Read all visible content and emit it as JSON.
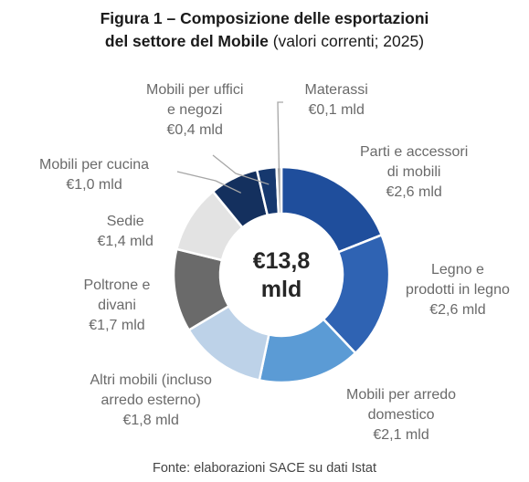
{
  "chart_data": {
    "type": "pie",
    "title_bold": "Figura 1 – Composizione delle esportazioni del settore del Mobile",
    "title_line1": "Figura 1 – Composizione delle esportazioni",
    "title_line2_bold": "del settore del Mobile",
    "title_line2_rest": "(valori correnti; 2025)",
    "center_line1": "€13,8",
    "center_line2": "mld",
    "source": "Fonte: elaborazioni SACE su dati Istat",
    "slices": [
      {
        "lines": [
          "Parti e accessori",
          "di mobili",
          "€2,6 mld"
        ],
        "value": 2.6,
        "color": "#1f4e9c"
      },
      {
        "lines": [
          "Legno e",
          "prodotti in legno",
          "€2,6 mld"
        ],
        "value": 2.6,
        "color": "#2f63b3"
      },
      {
        "lines": [
          "Mobili per arredo",
          "domestico",
          "€2,1 mld"
        ],
        "value": 2.1,
        "color": "#5b9bd5"
      },
      {
        "lines": [
          "Altri mobili (incluso",
          "arredo esterno)",
          "€1,8 mld"
        ],
        "value": 1.8,
        "color": "#bdd2e8"
      },
      {
        "lines": [
          "Poltrone e",
          "divani",
          "€1,7 mld"
        ],
        "value": 1.7,
        "color": "#6a6a6a"
      },
      {
        "lines": [
          "Sedie",
          "€1,4 mld"
        ],
        "value": 1.4,
        "color": "#e3e3e3"
      },
      {
        "lines": [
          "Mobili per cucina",
          "€1,0 mld"
        ],
        "value": 1.0,
        "color": "#14305e"
      },
      {
        "lines": [
          "Mobili per uffici",
          "e negozi",
          "€0,4 mld"
        ],
        "value": 0.4,
        "color": "#16386e"
      },
      {
        "lines": [
          "Materassi",
          "€0,1 mld"
        ],
        "value": 0.1,
        "color": "#a7a7a7"
      }
    ]
  }
}
